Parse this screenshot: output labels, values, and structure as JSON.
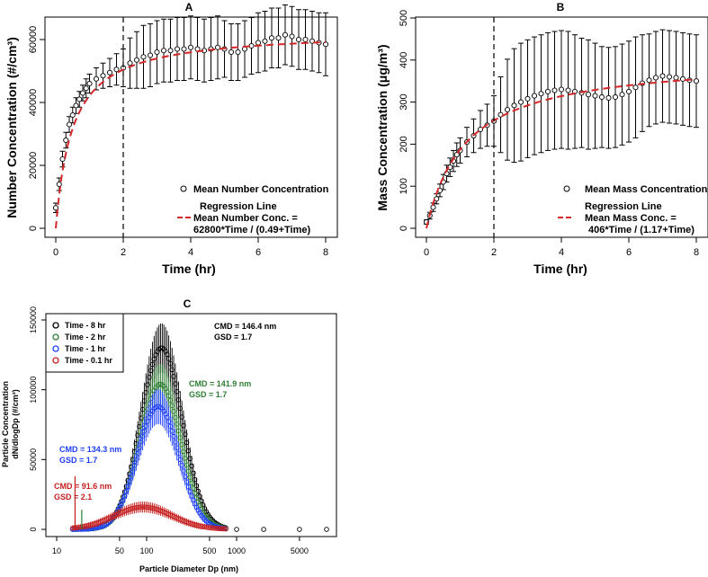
{
  "colors": {
    "black": "#000000",
    "red": "#d62728",
    "green": "#2e7d32",
    "blue": "#1f3fff",
    "darkred": "#c62020"
  },
  "chart_data": [
    {
      "panel": "A",
      "type": "scatter",
      "title": "A",
      "xlabel": "Time (hr)",
      "ylabel": "Number Concentration (#/cm³)",
      "xlim": [
        0,
        8
      ],
      "ylim": [
        0,
        70000
      ],
      "xticks": [
        "0",
        "2",
        "4",
        "6",
        "8"
      ],
      "yticks": [
        "0",
        "20000",
        "40000",
        "60000"
      ],
      "vline": 2,
      "legend": {
        "points": "Mean Number Concentration",
        "line_title": "Regression Line",
        "line_1": "Mean Number Conc. =",
        "line_2": "62800*Time / (0.49+Time)"
      },
      "regression": {
        "a": 62800,
        "b": 0.49
      },
      "points": {
        "x": [
          0,
          0.1,
          0.2,
          0.3,
          0.4,
          0.5,
          0.6,
          0.7,
          0.8,
          0.9,
          1.0,
          1.2,
          1.4,
          1.6,
          1.8,
          2.0,
          2.2,
          2.4,
          2.6,
          2.8,
          3.0,
          3.2,
          3.4,
          3.6,
          3.8,
          4.0,
          4.2,
          4.4,
          4.6,
          4.8,
          5.0,
          5.2,
          5.4,
          5.6,
          5.8,
          6.0,
          6.2,
          6.4,
          6.6,
          6.8,
          7.0,
          7.2,
          7.4,
          7.6,
          7.8,
          8.0
        ],
        "y": [
          6500,
          14000,
          22000,
          28000,
          33000,
          36000,
          39000,
          41000,
          43000,
          44500,
          46000,
          47500,
          48500,
          49500,
          50500,
          51000,
          52500,
          53500,
          54500,
          55000,
          56000,
          56500,
          56500,
          57000,
          57000,
          57500,
          57000,
          56500,
          57000,
          57500,
          57000,
          56000,
          56000,
          57000,
          58000,
          59000,
          59500,
          60500,
          60500,
          61500,
          61000,
          60000,
          60000,
          59500,
          59000,
          58500
        ],
        "err": [
          1500,
          2000,
          2500,
          2500,
          2500,
          2500,
          2500,
          2500,
          2500,
          3000,
          3000,
          3500,
          4000,
          4500,
          5000,
          6000,
          8000,
          9000,
          10000,
          10000,
          10000,
          10000,
          10000,
          10000,
          10000,
          10000,
          10000,
          10000,
          10000,
          10000,
          9000,
          9000,
          9000,
          9000,
          9000,
          9500,
          9500,
          9500,
          9500,
          9500,
          9500,
          9500,
          9500,
          9500,
          9500,
          10000
        ]
      }
    },
    {
      "panel": "B",
      "type": "scatter",
      "title": "B",
      "xlabel": "Time (hr)",
      "ylabel": "Mass Concentration (μg/m³)",
      "xlim": [
        0,
        8
      ],
      "ylim": [
        0,
        500
      ],
      "xticks": [
        "0",
        "2",
        "4",
        "6",
        "8"
      ],
      "yticks": [
        "0",
        "100",
        "200",
        "300",
        "400",
        "500"
      ],
      "vline": 2,
      "legend": {
        "points": "Mean Mass Concentration",
        "line_title": "Regression Line",
        "line_1": "Mean Mass Conc. =",
        "line_2": "406*Time / (1.17+Time)"
      },
      "regression": {
        "a": 406,
        "b": 1.17
      },
      "points": {
        "x": [
          0,
          0.1,
          0.2,
          0.3,
          0.4,
          0.5,
          0.6,
          0.7,
          0.8,
          0.9,
          1.0,
          1.2,
          1.4,
          1.6,
          1.8,
          2.0,
          2.2,
          2.4,
          2.6,
          2.8,
          3.0,
          3.2,
          3.4,
          3.6,
          3.8,
          4.0,
          4.2,
          4.4,
          4.6,
          4.8,
          5.0,
          5.2,
          5.4,
          5.6,
          5.8,
          6.0,
          6.2,
          6.4,
          6.6,
          6.8,
          7.0,
          7.2,
          7.4,
          7.6,
          7.8,
          8.0
        ],
        "y": [
          15,
          30,
          50,
          70,
          90,
          110,
          130,
          145,
          160,
          175,
          185,
          205,
          220,
          235,
          245,
          255,
          270,
          282,
          292,
          300,
          308,
          315,
          320,
          325,
          328,
          330,
          328,
          325,
          322,
          318,
          315,
          312,
          310,
          312,
          318,
          325,
          335,
          345,
          352,
          358,
          362,
          360,
          358,
          355,
          352,
          350
        ],
        "err": [
          5,
          8,
          10,
          12,
          15,
          18,
          20,
          22,
          25,
          28,
          30,
          35,
          40,
          45,
          50,
          60,
          90,
          120,
          135,
          140,
          140,
          140,
          140,
          140,
          140,
          140,
          140,
          135,
          130,
          130,
          125,
          120,
          120,
          120,
          120,
          120,
          120,
          115,
          110,
          110,
          110,
          110,
          110,
          110,
          110,
          110
        ]
      }
    },
    {
      "panel": "C",
      "type": "scatter",
      "title": "C",
      "xlabel": "Particle Diameter Dp (nm)",
      "ylabel_1": "Particle Concentration",
      "ylabel_2": "dN/dlogDp (#/cm³)",
      "xscale": "log",
      "xlim": [
        10,
        10000
      ],
      "ylim": [
        0,
        150000
      ],
      "xticks": [
        "10",
        "50",
        "100",
        "500",
        "1000",
        "5000"
      ],
      "yticks": [
        "0",
        "50000",
        "100000",
        "150000"
      ],
      "series": [
        {
          "name": "Time - 8 hr",
          "color": "#000000",
          "cmd_nm": 146.4,
          "gsd": 1.7,
          "peak": 130000,
          "cmd_label": "CMD = 146.4 nm",
          "gsd_label": "GSD = 1.7"
        },
        {
          "name": "Time - 2 hr",
          "color": "#2e7d32",
          "cmd_nm": 141.9,
          "gsd": 1.7,
          "peak": 104000,
          "cmd_label": "CMD = 141.9 nm",
          "gsd_label": "GSD = 1.7"
        },
        {
          "name": "Time - 1 hr",
          "color": "#1f3fff",
          "cmd_nm": 134.3,
          "gsd": 1.7,
          "peak": 88000,
          "cmd_label": "CMD = 134.3 nm",
          "gsd_label": "GSD = 1.7"
        },
        {
          "name": "Time - 0.1 hr",
          "color": "#c62020",
          "cmd_nm": 91.6,
          "gsd": 2.1,
          "peak": 16000,
          "cmd_label": "CMD = 91.6 nm",
          "gsd_label": "GSD = 2.1"
        }
      ],
      "tail_points_x": [
        1000,
        2000,
        5000,
        10000
      ],
      "tail_points_y": [
        0,
        0,
        0,
        0
      ]
    }
  ]
}
